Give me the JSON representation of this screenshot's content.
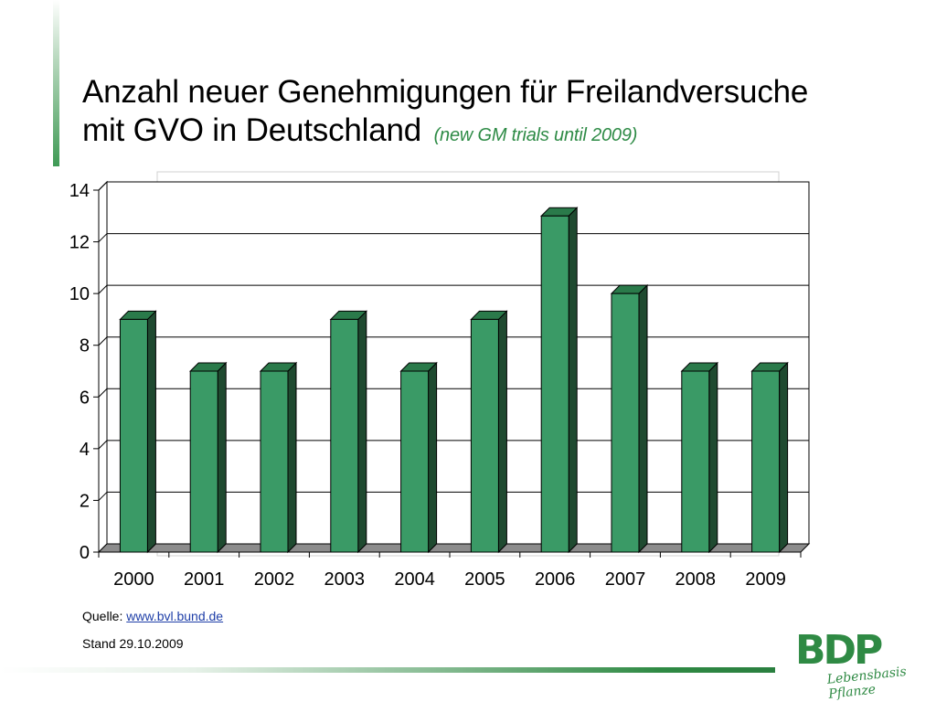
{
  "slide": {
    "title_line1": "Anzahl neuer Genehmigungen für Freilandversuche",
    "title_line2": "mit GVO in Deutschland",
    "title_sub": "(new GM trials until 2009)",
    "source_label": "Quelle:",
    "source_link": "www.bvl.bund.de",
    "stand": "Stand 29.10.2009",
    "logo_text": "BDP",
    "logo_tagline": "Lebensbasis Pflanze"
  },
  "chart_data": {
    "type": "bar",
    "categories": [
      "2000",
      "2001",
      "2002",
      "2003",
      "2004",
      "2005",
      "2006",
      "2007",
      "2008",
      "2009"
    ],
    "series": [
      {
        "values": [
          9,
          7,
          7,
          9,
          7,
          9,
          13,
          10,
          7,
          7
        ]
      }
    ],
    "ylim": [
      0,
      14
    ],
    "yticks": [
      0,
      2,
      4,
      6,
      8,
      10,
      12,
      14
    ],
    "grid": true,
    "colors": {
      "bar_front": "#3a9a66",
      "bar_side": "#1f4a30",
      "bar_top": "#2a7a4a",
      "floor": "#8c8c8c"
    }
  }
}
